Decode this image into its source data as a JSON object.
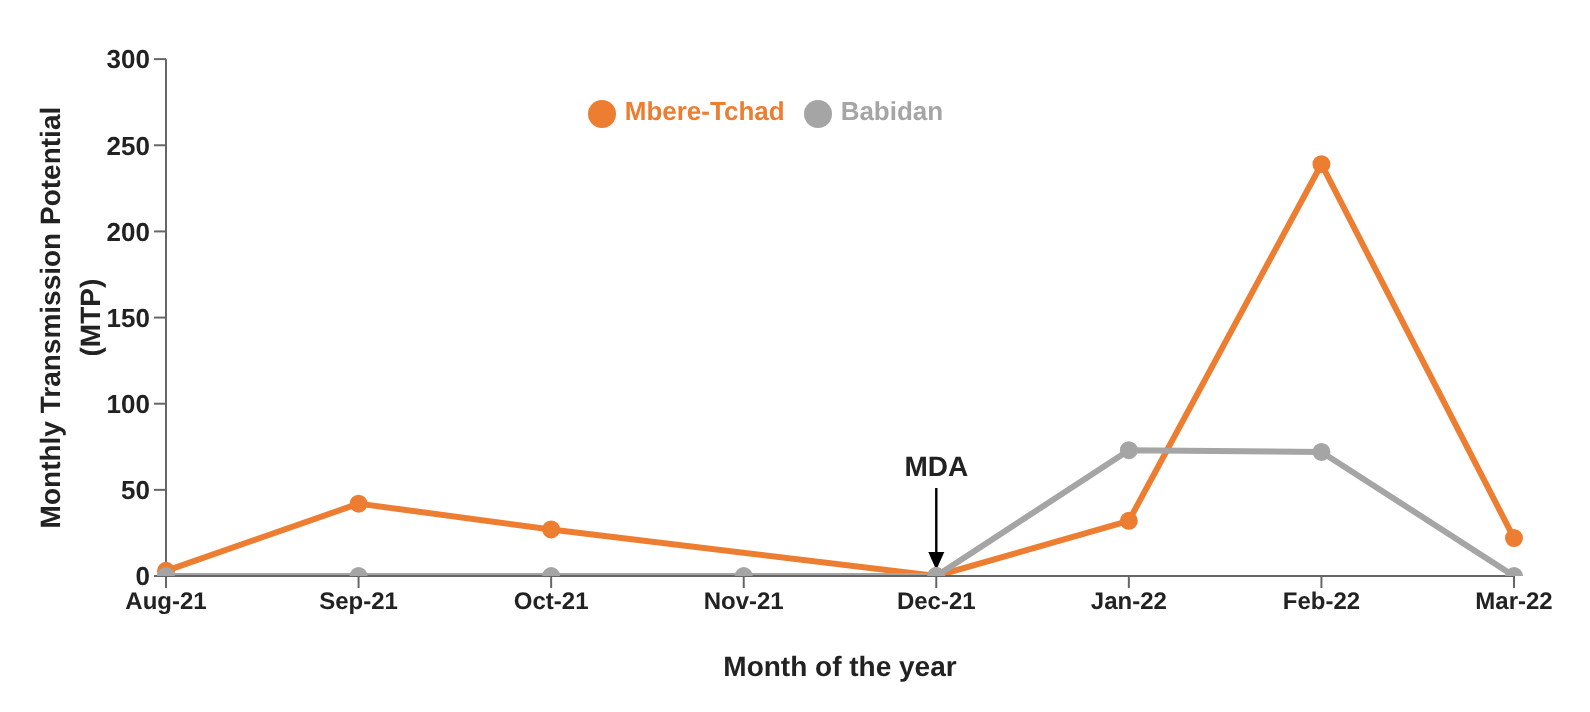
{
  "chart_data": {
    "type": "line",
    "xlabel": "Month of the year",
    "ylabel": "Monthly Transmission Potential (MTP)",
    "categories": [
      "Aug-21",
      "Sep-21",
      "Oct-21",
      "Nov-21",
      "Dec-21",
      "Jan-22",
      "Feb-22",
      "Mar-22"
    ],
    "series": [
      {
        "name": "Mbere-Tchad",
        "color": "#ed7d31",
        "values": [
          3,
          42,
          27,
          null,
          0,
          32,
          239,
          22
        ]
      },
      {
        "name": "Babidan",
        "color": "#a5a5a5",
        "values": [
          0,
          0,
          0,
          0,
          0,
          73,
          72,
          0
        ]
      }
    ],
    "ylim": [
      0,
      300
    ],
    "yticks": [
      0,
      50,
      100,
      150,
      200,
      250,
      300
    ],
    "grid": false,
    "legend": "top",
    "marker": "circle",
    "line_style": "solid",
    "annotations": [
      {
        "text": "MDA",
        "x": "Dec-21",
        "y": 0
      }
    ]
  }
}
